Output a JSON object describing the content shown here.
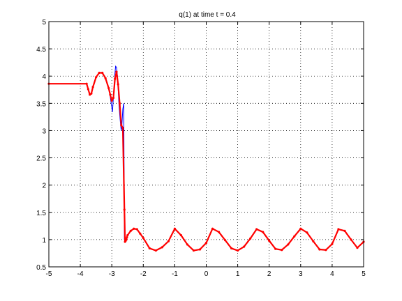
{
  "chart_data": {
    "type": "line",
    "title": "q(1)   at time t = 0.4",
    "xlabel": "",
    "ylabel": "",
    "xlim": [
      -5,
      5
    ],
    "ylim": [
      0.5,
      5
    ],
    "xticks": [
      "-5",
      "-4",
      "-3",
      "-2",
      "-1",
      "0",
      "1",
      "2",
      "3",
      "4",
      "5"
    ],
    "yticks": [
      "0.5",
      "1",
      "1.5",
      "2",
      "2.5",
      "3",
      "3.5",
      "4",
      "4.5",
      "5"
    ],
    "grid": true,
    "legend": "none",
    "series": [
      {
        "color": "#0000ff",
        "style": "solid line",
        "x": [
          -5.0,
          -3.8,
          -3.75,
          -3.7,
          -3.65,
          -3.6,
          -3.5,
          -3.4,
          -3.3,
          -3.2,
          -3.1,
          -3.05,
          -3.02,
          -2.98,
          -2.95,
          -2.9,
          -2.88,
          -2.85,
          -2.82,
          -2.8,
          -2.78,
          -2.75,
          -2.72,
          -2.7,
          -2.68,
          -2.65,
          -2.62,
          -2.6,
          -2.58,
          -2.56,
          -2.54,
          -2.52,
          -2.5,
          -2.4,
          -2.3,
          -2.2,
          -2.1,
          -2.0,
          -1.8,
          -1.6,
          -1.4,
          -1.2,
          -1.0,
          -0.8,
          -0.6,
          -0.4,
          -0.2,
          0.0,
          0.2,
          0.4,
          0.6,
          0.8,
          1.0,
          1.2,
          1.4,
          1.6,
          1.8,
          2.0,
          2.2,
          2.4,
          2.6,
          2.8,
          3.0,
          3.2,
          3.4,
          3.6,
          3.8,
          4.0,
          4.2,
          4.4,
          4.6,
          4.8,
          5.0
        ],
        "y": [
          3.86,
          3.86,
          3.76,
          3.66,
          3.68,
          3.8,
          3.98,
          4.06,
          4.06,
          3.96,
          3.78,
          3.62,
          3.5,
          3.34,
          3.6,
          4.05,
          4.18,
          4.16,
          4.0,
          3.8,
          3.55,
          3.3,
          3.1,
          3.0,
          3.1,
          3.4,
          3.5,
          1.0,
          0.96,
          0.98,
          1.0,
          1.04,
          1.08,
          1.16,
          1.2,
          1.19,
          1.11,
          1.03,
          0.84,
          0.8,
          0.86,
          0.97,
          1.2,
          1.08,
          0.91,
          0.8,
          0.82,
          0.94,
          1.2,
          1.14,
          0.99,
          0.84,
          0.8,
          0.87,
          1.02,
          1.19,
          1.14,
          0.98,
          0.83,
          0.81,
          0.91,
          1.06,
          1.2,
          1.13,
          0.97,
          0.82,
          0.81,
          0.92,
          1.19,
          1.16,
          1.0,
          0.85,
          0.96
        ]
      },
      {
        "color": "#ff0000",
        "style": "dots",
        "x": [
          -5.0,
          -3.8,
          -3.75,
          -3.7,
          -3.65,
          -3.6,
          -3.5,
          -3.4,
          -3.3,
          -3.2,
          -3.1,
          -3.05,
          -3.0,
          -2.95,
          -2.9,
          -2.85,
          -2.8,
          -2.75,
          -2.7,
          -2.65,
          -2.6,
          -2.58,
          -2.56,
          -2.54,
          -2.52,
          -2.5,
          -2.4,
          -2.3,
          -2.2,
          -2.1,
          -2.0,
          -1.8,
          -1.6,
          -1.4,
          -1.2,
          -1.0,
          -0.8,
          -0.6,
          -0.4,
          -0.2,
          0.0,
          0.2,
          0.4,
          0.6,
          0.8,
          1.0,
          1.2,
          1.4,
          1.6,
          1.8,
          2.0,
          2.2,
          2.4,
          2.6,
          2.8,
          3.0,
          3.2,
          3.4,
          3.6,
          3.8,
          4.0,
          4.2,
          4.4,
          4.6,
          4.8,
          5.0
        ],
        "y": [
          3.86,
          3.86,
          3.76,
          3.66,
          3.68,
          3.8,
          3.98,
          4.06,
          4.06,
          3.96,
          3.78,
          3.66,
          3.55,
          3.6,
          3.95,
          4.08,
          3.85,
          3.5,
          3.1,
          3.05,
          1.55,
          0.96,
          0.98,
          1.0,
          1.04,
          1.08,
          1.16,
          1.2,
          1.19,
          1.11,
          1.03,
          0.84,
          0.8,
          0.86,
          0.97,
          1.2,
          1.08,
          0.91,
          0.8,
          0.82,
          0.94,
          1.2,
          1.14,
          0.99,
          0.84,
          0.8,
          0.87,
          1.02,
          1.19,
          1.14,
          0.98,
          0.83,
          0.81,
          0.91,
          1.06,
          1.2,
          1.13,
          0.97,
          0.82,
          0.81,
          0.92,
          1.19,
          1.16,
          1.0,
          0.85,
          0.96
        ]
      }
    ]
  }
}
